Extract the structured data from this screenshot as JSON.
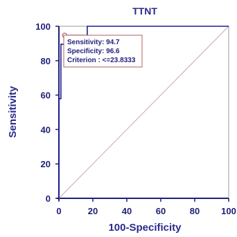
{
  "chart_data": {
    "type": "line",
    "title": "TTNT",
    "xlabel": "100-Specificity",
    "ylabel": "Sensitivity",
    "xlim": [
      0,
      100
    ],
    "ylim": [
      0,
      100
    ],
    "x_ticks": [
      "0",
      "20",
      "40",
      "60",
      "80",
      "100"
    ],
    "y_ticks": [
      "0",
      "20",
      "40",
      "60",
      "80",
      "100"
    ],
    "grid": false,
    "series": [
      {
        "color": "#1c1c99",
        "points": [
          [
            0,
            0
          ],
          [
            0,
            57.9
          ],
          [
            1.2,
            57.9
          ],
          [
            1.2,
            89.5
          ],
          [
            3.4,
            89.5
          ],
          [
            3.4,
            94.7
          ],
          [
            16.7,
            94.7
          ],
          [
            16.7,
            100
          ],
          [
            100,
            100
          ]
        ]
      },
      {
        "color": "#c9a7a7",
        "points": [
          [
            0,
            0
          ],
          [
            100,
            100
          ]
        ]
      }
    ],
    "criterion_point": [
      3.4,
      94.7
    ],
    "annotation": {
      "lines": [
        "Sensitivity: 94.7",
        "Specificity: 96.6",
        "Criterion : <=23.8333"
      ]
    }
  }
}
